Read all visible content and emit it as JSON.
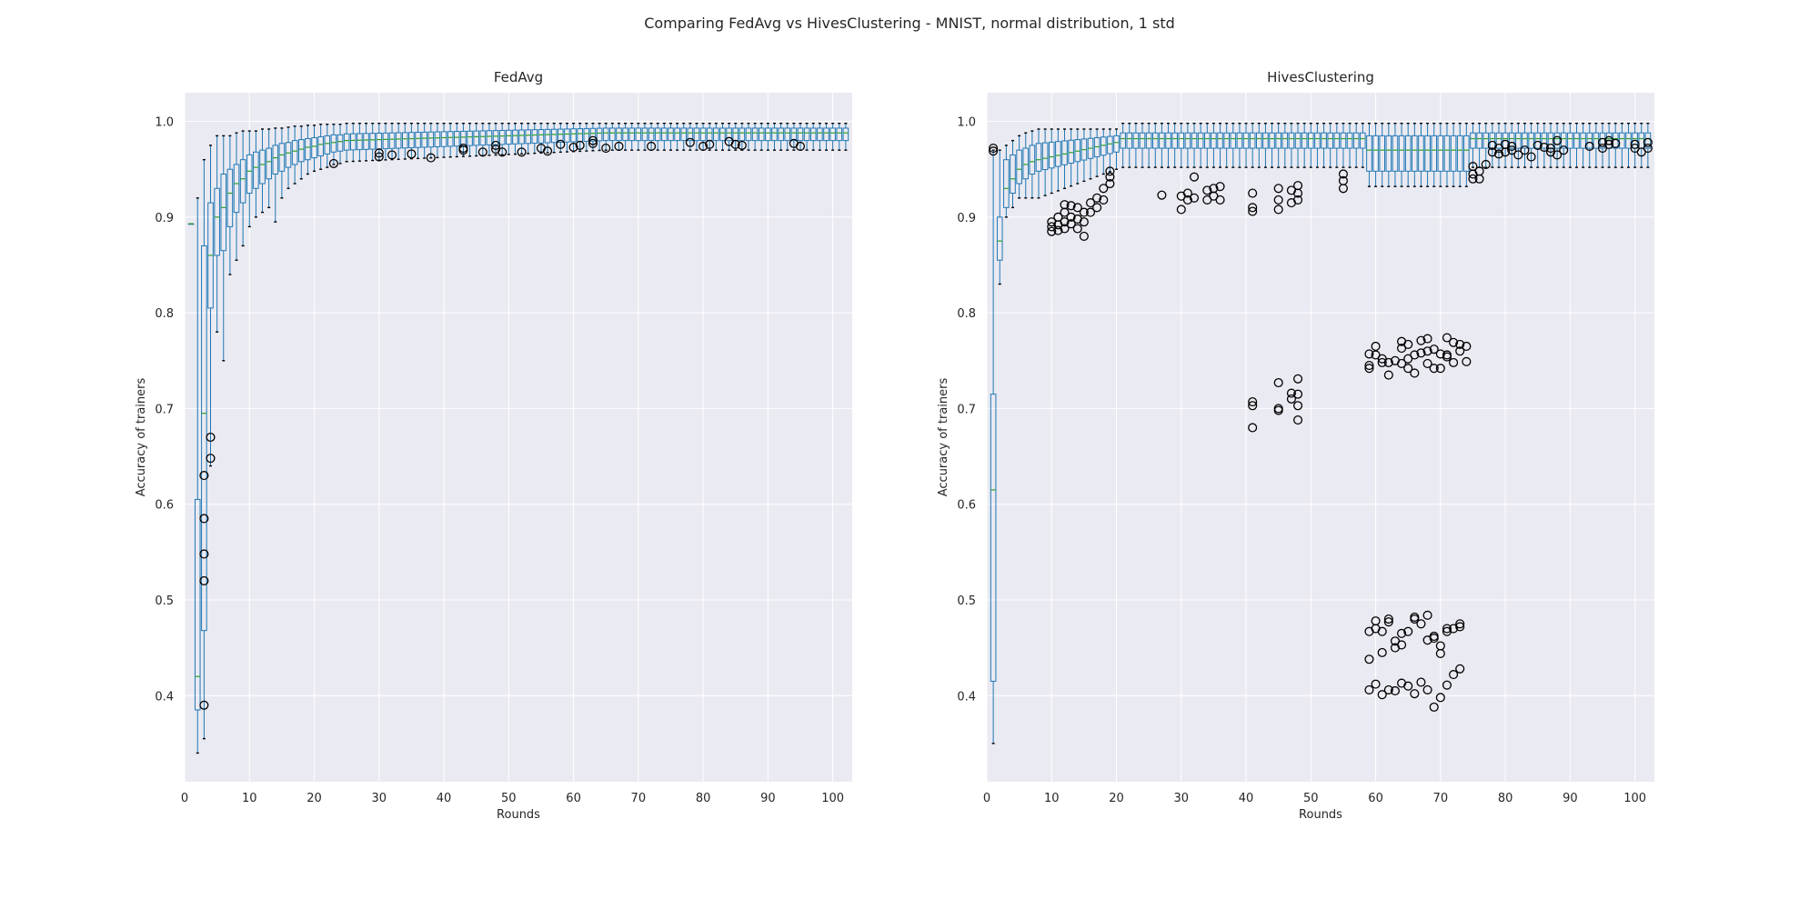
{
  "figure": {
    "suptitle": "Comparing FedAvg vs HivesClustering - MNIST, normal distribution, 1 std"
  },
  "colors": {
    "axes_background": "#eaeaf2",
    "grid": "#ffffff",
    "box": "#1f77b4",
    "median": "#2ca02c",
    "outlier": "#000000"
  },
  "chart_data": [
    {
      "type": "box",
      "title": "FedAvg",
      "xlabel": "Rounds",
      "ylabel": "Accuracy of trainers",
      "xlim": [
        0,
        103
      ],
      "ylim": [
        0.31,
        1.03
      ],
      "xticks": [
        0,
        10,
        20,
        30,
        40,
        50,
        60,
        70,
        80,
        90,
        100
      ],
      "yticks": [
        0.4,
        0.5,
        0.6,
        0.7,
        0.8,
        0.9,
        1.0
      ],
      "grid": true,
      "boxes": [
        {
          "x": 1,
          "min": 0.893,
          "q1": 0.893,
          "median": 0.893,
          "q3": 0.893,
          "max": 0.893
        },
        {
          "x": 2,
          "min": 0.34,
          "q1": 0.385,
          "median": 0.42,
          "q3": 0.605,
          "max": 0.92
        },
        {
          "x": 3,
          "min": 0.355,
          "q1": 0.468,
          "median": 0.695,
          "q3": 0.87,
          "max": 0.96
        },
        {
          "x": 4,
          "min": 0.64,
          "q1": 0.805,
          "median": 0.86,
          "q3": 0.915,
          "max": 0.975
        },
        {
          "x": 5,
          "min": 0.78,
          "q1": 0.86,
          "median": 0.9,
          "q3": 0.93,
          "max": 0.985
        },
        {
          "x": 6,
          "min": 0.75,
          "q1": 0.865,
          "median": 0.91,
          "q3": 0.945,
          "max": 0.985
        },
        {
          "x": 7,
          "min": 0.84,
          "q1": 0.89,
          "median": 0.925,
          "q3": 0.95,
          "max": 0.985
        },
        {
          "x": 8,
          "min": 0.855,
          "q1": 0.905,
          "median": 0.935,
          "q3": 0.955,
          "max": 0.988
        },
        {
          "x": 9,
          "min": 0.87,
          "q1": 0.915,
          "median": 0.94,
          "q3": 0.96,
          "max": 0.99
        },
        {
          "x": 10,
          "min": 0.89,
          "q1": 0.925,
          "median": 0.948,
          "q3": 0.965,
          "max": 0.99
        },
        {
          "x": 11,
          "min": 0.9,
          "q1": 0.93,
          "median": 0.952,
          "q3": 0.968,
          "max": 0.99
        },
        {
          "x": 12,
          "min": 0.905,
          "q1": 0.935,
          "median": 0.955,
          "q3": 0.97,
          "max": 0.992
        },
        {
          "x": 13,
          "min": 0.91,
          "q1": 0.94,
          "median": 0.958,
          "q3": 0.972,
          "max": 0.992
        },
        {
          "x": 14,
          "min": 0.895,
          "q1": 0.945,
          "median": 0.962,
          "q3": 0.975,
          "max": 0.993
        },
        {
          "x": 15,
          "min": 0.92,
          "q1": 0.948,
          "median": 0.965,
          "q3": 0.977,
          "max": 0.993
        },
        {
          "x": 16,
          "min": 0.93,
          "q1": 0.952,
          "median": 0.967,
          "q3": 0.978,
          "max": 0.994
        },
        {
          "x": 17,
          "min": 0.935,
          "q1": 0.955,
          "median": 0.969,
          "q3": 0.98,
          "max": 0.995
        },
        {
          "x": 18,
          "min": 0.94,
          "q1": 0.958,
          "median": 0.971,
          "q3": 0.981,
          "max": 0.995
        },
        {
          "x": 19,
          "min": 0.945,
          "q1": 0.96,
          "median": 0.973,
          "q3": 0.982,
          "max": 0.996
        },
        {
          "x": 20,
          "min": 0.948,
          "q1": 0.962,
          "median": 0.974,
          "q3": 0.983,
          "max": 0.996
        },
        {
          "x": 21,
          "min": 0.95,
          "q1": 0.964,
          "median": 0.976,
          "q3": 0.984,
          "max": 0.997
        },
        {
          "x": 22,
          "min": 0.952,
          "q1": 0.966,
          "median": 0.977,
          "q3": 0.985,
          "max": 0.997
        },
        {
          "x": 23,
          "min": 0.955,
          "q1": 0.968,
          "median": 0.978,
          "q3": 0.986,
          "max": 0.997
        },
        {
          "x": 24,
          "min": 0.956,
          "q1": 0.969,
          "median": 0.979,
          "q3": 0.986,
          "max": 0.997
        },
        {
          "x": 25,
          "min": 0.958,
          "q1": 0.97,
          "median": 0.98,
          "q3": 0.987,
          "max": 0.998
        }
      ],
      "outliers": [
        {
          "x": 4,
          "y": 0.67
        },
        {
          "x": 4,
          "y": 0.648
        },
        {
          "x": 3,
          "y": 0.63
        },
        {
          "x": 3,
          "y": 0.585
        },
        {
          "x": 3,
          "y": 0.548
        },
        {
          "x": 3,
          "y": 0.52
        },
        {
          "x": 3,
          "y": 0.39
        },
        {
          "x": 23,
          "y": 0.956
        },
        {
          "x": 30,
          "y": 0.963
        },
        {
          "x": 30,
          "y": 0.967
        },
        {
          "x": 32,
          "y": 0.965
        },
        {
          "x": 35,
          "y": 0.966
        },
        {
          "x": 38,
          "y": 0.962
        },
        {
          "x": 43,
          "y": 0.972
        },
        {
          "x": 43,
          "y": 0.97
        },
        {
          "x": 46,
          "y": 0.968
        },
        {
          "x": 48,
          "y": 0.975
        },
        {
          "x": 48,
          "y": 0.971
        },
        {
          "x": 49,
          "y": 0.968
        },
        {
          "x": 52,
          "y": 0.968
        },
        {
          "x": 55,
          "y": 0.972
        },
        {
          "x": 56,
          "y": 0.969
        },
        {
          "x": 58,
          "y": 0.976
        },
        {
          "x": 60,
          "y": 0.973
        },
        {
          "x": 61,
          "y": 0.975
        },
        {
          "x": 63,
          "y": 0.977
        },
        {
          "x": 63,
          "y": 0.98
        },
        {
          "x": 65,
          "y": 0.972
        },
        {
          "x": 67,
          "y": 0.974
        },
        {
          "x": 72,
          "y": 0.974
        },
        {
          "x": 78,
          "y": 0.978
        },
        {
          "x": 80,
          "y": 0.974
        },
        {
          "x": 81,
          "y": 0.976
        },
        {
          "x": 84,
          "y": 0.979
        },
        {
          "x": 85,
          "y": 0.976
        },
        {
          "x": 86,
          "y": 0.975
        },
        {
          "x": 94,
          "y": 0.977
        },
        {
          "x": 95,
          "y": 0.974
        }
      ]
    },
    {
      "type": "box",
      "title": "HivesClustering",
      "xlabel": "Rounds",
      "ylabel": "Accuracy of trainers",
      "xlim": [
        0,
        103
      ],
      "ylim": [
        0.31,
        1.03
      ],
      "xticks": [
        0,
        10,
        20,
        30,
        40,
        50,
        60,
        70,
        80,
        90,
        100
      ],
      "yticks": [
        0.4,
        0.5,
        0.6,
        0.7,
        0.8,
        0.9,
        1.0
      ],
      "grid": true,
      "boxes": [
        {
          "x": 1,
          "min": 0.35,
          "q1": 0.415,
          "median": 0.615,
          "q3": 0.715,
          "max": 0.97
        },
        {
          "x": 2,
          "min": 0.83,
          "q1": 0.855,
          "median": 0.875,
          "q3": 0.9,
          "max": 0.97
        },
        {
          "x": 3,
          "min": 0.9,
          "q1": 0.91,
          "median": 0.93,
          "q3": 0.96,
          "max": 0.975
        },
        {
          "x": 4,
          "min": 0.91,
          "q1": 0.925,
          "median": 0.94,
          "q3": 0.965,
          "max": 0.98
        },
        {
          "x": 5,
          "min": 0.92,
          "q1": 0.935,
          "median": 0.95,
          "q3": 0.97,
          "max": 0.985
        },
        {
          "x": 6,
          "min": 0.92,
          "q1": 0.94,
          "median": 0.955,
          "q3": 0.972,
          "max": 0.988
        },
        {
          "x": 7,
          "min": 0.92,
          "q1": 0.945,
          "median": 0.958,
          "q3": 0.975,
          "max": 0.99
        }
      ],
      "outliers": [
        {
          "x": 1,
          "y": 0.972
        },
        {
          "x": 1,
          "y": 0.969
        },
        {
          "x": 10,
          "y": 0.895
        },
        {
          "x": 10,
          "y": 0.89
        },
        {
          "x": 10,
          "y": 0.885
        },
        {
          "x": 11,
          "y": 0.9
        },
        {
          "x": 11,
          "y": 0.892
        },
        {
          "x": 11,
          "y": 0.886
        },
        {
          "x": 12,
          "y": 0.913
        },
        {
          "x": 12,
          "y": 0.905
        },
        {
          "x": 12,
          "y": 0.895
        },
        {
          "x": 12,
          "y": 0.888
        },
        {
          "x": 13,
          "y": 0.912
        },
        {
          "x": 13,
          "y": 0.9
        },
        {
          "x": 13,
          "y": 0.893
        },
        {
          "x": 14,
          "y": 0.91
        },
        {
          "x": 14,
          "y": 0.898
        },
        {
          "x": 14,
          "y": 0.888
        },
        {
          "x": 15,
          "y": 0.905
        },
        {
          "x": 15,
          "y": 0.895
        },
        {
          "x": 15,
          "y": 0.88
        },
        {
          "x": 16,
          "y": 0.915
        },
        {
          "x": 16,
          "y": 0.905
        },
        {
          "x": 17,
          "y": 0.92
        },
        {
          "x": 17,
          "y": 0.91
        },
        {
          "x": 18,
          "y": 0.93
        },
        {
          "x": 18,
          "y": 0.918
        },
        {
          "x": 19,
          "y": 0.948
        },
        {
          "x": 19,
          "y": 0.942
        },
        {
          "x": 19,
          "y": 0.935
        },
        {
          "x": 27,
          "y": 0.923
        },
        {
          "x": 30,
          "y": 0.922
        },
        {
          "x": 30,
          "y": 0.908
        },
        {
          "x": 31,
          "y": 0.925
        },
        {
          "x": 31,
          "y": 0.918
        },
        {
          "x": 32,
          "y": 0.942
        },
        {
          "x": 32,
          "y": 0.92
        },
        {
          "x": 34,
          "y": 0.928
        },
        {
          "x": 34,
          "y": 0.918
        },
        {
          "x": 35,
          "y": 0.93
        },
        {
          "x": 35,
          "y": 0.922
        },
        {
          "x": 36,
          "y": 0.932
        },
        {
          "x": 36,
          "y": 0.918
        },
        {
          "x": 41,
          "y": 0.925
        },
        {
          "x": 41,
          "y": 0.91
        },
        {
          "x": 41,
          "y": 0.906
        },
        {
          "x": 41,
          "y": 0.707
        },
        {
          "x": 41,
          "y": 0.703
        },
        {
          "x": 41,
          "y": 0.68
        },
        {
          "x": 45,
          "y": 0.93
        },
        {
          "x": 45,
          "y": 0.918
        },
        {
          "x": 45,
          "y": 0.908
        },
        {
          "x": 45,
          "y": 0.727
        },
        {
          "x": 45,
          "y": 0.7
        },
        {
          "x": 45,
          "y": 0.698
        },
        {
          "x": 47,
          "y": 0.928
        },
        {
          "x": 47,
          "y": 0.915
        },
        {
          "x": 47,
          "y": 0.716
        },
        {
          "x": 47,
          "y": 0.71
        },
        {
          "x": 48,
          "y": 0.933
        },
        {
          "x": 48,
          "y": 0.925
        },
        {
          "x": 48,
          "y": 0.918
        },
        {
          "x": 48,
          "y": 0.731
        },
        {
          "x": 48,
          "y": 0.715
        },
        {
          "x": 48,
          "y": 0.703
        },
        {
          "x": 48,
          "y": 0.688
        },
        {
          "x": 55,
          "y": 0.945
        },
        {
          "x": 55,
          "y": 0.938
        },
        {
          "x": 55,
          "y": 0.93
        },
        {
          "x": 59,
          "y": 0.757
        },
        {
          "x": 59,
          "y": 0.745
        },
        {
          "x": 59,
          "y": 0.742
        },
        {
          "x": 59,
          "y": 0.467
        },
        {
          "x": 59,
          "y": 0.438
        },
        {
          "x": 59,
          "y": 0.406
        },
        {
          "x": 60,
          "y": 0.765
        },
        {
          "x": 60,
          "y": 0.756
        },
        {
          "x": 60,
          "y": 0.478
        },
        {
          "x": 60,
          "y": 0.47
        },
        {
          "x": 60,
          "y": 0.412
        },
        {
          "x": 61,
          "y": 0.752
        },
        {
          "x": 61,
          "y": 0.748
        },
        {
          "x": 61,
          "y": 0.467
        },
        {
          "x": 61,
          "y": 0.445
        },
        {
          "x": 61,
          "y": 0.401
        },
        {
          "x": 62,
          "y": 0.748
        },
        {
          "x": 62,
          "y": 0.735
        },
        {
          "x": 62,
          "y": 0.48
        },
        {
          "x": 62,
          "y": 0.477
        },
        {
          "x": 62,
          "y": 0.406
        },
        {
          "x": 63,
          "y": 0.75
        },
        {
          "x": 63,
          "y": 0.457
        },
        {
          "x": 63,
          "y": 0.45
        },
        {
          "x": 63,
          "y": 0.405
        },
        {
          "x": 64,
          "y": 0.77
        },
        {
          "x": 64,
          "y": 0.763
        },
        {
          "x": 64,
          "y": 0.747
        },
        {
          "x": 64,
          "y": 0.465
        },
        {
          "x": 64,
          "y": 0.453
        },
        {
          "x": 64,
          "y": 0.413
        },
        {
          "x": 65,
          "y": 0.767
        },
        {
          "x": 65,
          "y": 0.752
        },
        {
          "x": 65,
          "y": 0.742
        },
        {
          "x": 65,
          "y": 0.467
        },
        {
          "x": 65,
          "y": 0.41
        },
        {
          "x": 66,
          "y": 0.756
        },
        {
          "x": 66,
          "y": 0.737
        },
        {
          "x": 66,
          "y": 0.482
        },
        {
          "x": 66,
          "y": 0.48
        },
        {
          "x": 66,
          "y": 0.402
        },
        {
          "x": 67,
          "y": 0.771
        },
        {
          "x": 67,
          "y": 0.758
        },
        {
          "x": 67,
          "y": 0.475
        },
        {
          "x": 67,
          "y": 0.414
        },
        {
          "x": 68,
          "y": 0.773
        },
        {
          "x": 68,
          "y": 0.76
        },
        {
          "x": 68,
          "y": 0.747
        },
        {
          "x": 68,
          "y": 0.484
        },
        {
          "x": 68,
          "y": 0.458
        },
        {
          "x": 68,
          "y": 0.406
        },
        {
          "x": 69,
          "y": 0.762
        },
        {
          "x": 69,
          "y": 0.742
        },
        {
          "x": 69,
          "y": 0.462
        },
        {
          "x": 69,
          "y": 0.46
        },
        {
          "x": 69,
          "y": 0.388
        },
        {
          "x": 70,
          "y": 0.757
        },
        {
          "x": 70,
          "y": 0.742
        },
        {
          "x": 70,
          "y": 0.452
        },
        {
          "x": 70,
          "y": 0.444
        },
        {
          "x": 70,
          "y": 0.398
        },
        {
          "x": 71,
          "y": 0.774
        },
        {
          "x": 71,
          "y": 0.756
        },
        {
          "x": 71,
          "y": 0.754
        },
        {
          "x": 71,
          "y": 0.47
        },
        {
          "x": 71,
          "y": 0.467
        },
        {
          "x": 71,
          "y": 0.411
        },
        {
          "x": 72,
          "y": 0.769
        },
        {
          "x": 72,
          "y": 0.748
        },
        {
          "x": 72,
          "y": 0.47
        },
        {
          "x": 72,
          "y": 0.422
        },
        {
          "x": 73,
          "y": 0.767
        },
        {
          "x": 73,
          "y": 0.76
        },
        {
          "x": 73,
          "y": 0.475
        },
        {
          "x": 73,
          "y": 0.472
        },
        {
          "x": 73,
          "y": 0.428
        },
        {
          "x": 74,
          "y": 0.765
        },
        {
          "x": 74,
          "y": 0.749
        },
        {
          "x": 75,
          "y": 0.953
        },
        {
          "x": 75,
          "y": 0.945
        },
        {
          "x": 75,
          "y": 0.94
        },
        {
          "x": 76,
          "y": 0.948
        },
        {
          "x": 76,
          "y": 0.94
        },
        {
          "x": 77,
          "y": 0.955
        },
        {
          "x": 78,
          "y": 0.975
        },
        {
          "x": 78,
          "y": 0.968
        },
        {
          "x": 79,
          "y": 0.972
        },
        {
          "x": 79,
          "y": 0.966
        },
        {
          "x": 80,
          "y": 0.976
        },
        {
          "x": 80,
          "y": 0.968
        },
        {
          "x": 81,
          "y": 0.974
        },
        {
          "x": 81,
          "y": 0.97
        },
        {
          "x": 82,
          "y": 0.965
        },
        {
          "x": 83,
          "y": 0.97
        },
        {
          "x": 84,
          "y": 0.963
        },
        {
          "x": 85,
          "y": 0.975
        },
        {
          "x": 86,
          "y": 0.973
        },
        {
          "x": 87,
          "y": 0.972
        },
        {
          "x": 87,
          "y": 0.968
        },
        {
          "x": 88,
          "y": 0.98
        },
        {
          "x": 88,
          "y": 0.965
        },
        {
          "x": 89,
          "y": 0.97
        },
        {
          "x": 93,
          "y": 0.974
        },
        {
          "x": 95,
          "y": 0.972
        },
        {
          "x": 95,
          "y": 0.978
        },
        {
          "x": 96,
          "y": 0.98
        },
        {
          "x": 96,
          "y": 0.976
        },
        {
          "x": 97,
          "y": 0.977
        },
        {
          "x": 100,
          "y": 0.976
        },
        {
          "x": 100,
          "y": 0.972
        },
        {
          "x": 101,
          "y": 0.968
        },
        {
          "x": 102,
          "y": 0.978
        },
        {
          "x": 102,
          "y": 0.972
        }
      ]
    }
  ]
}
